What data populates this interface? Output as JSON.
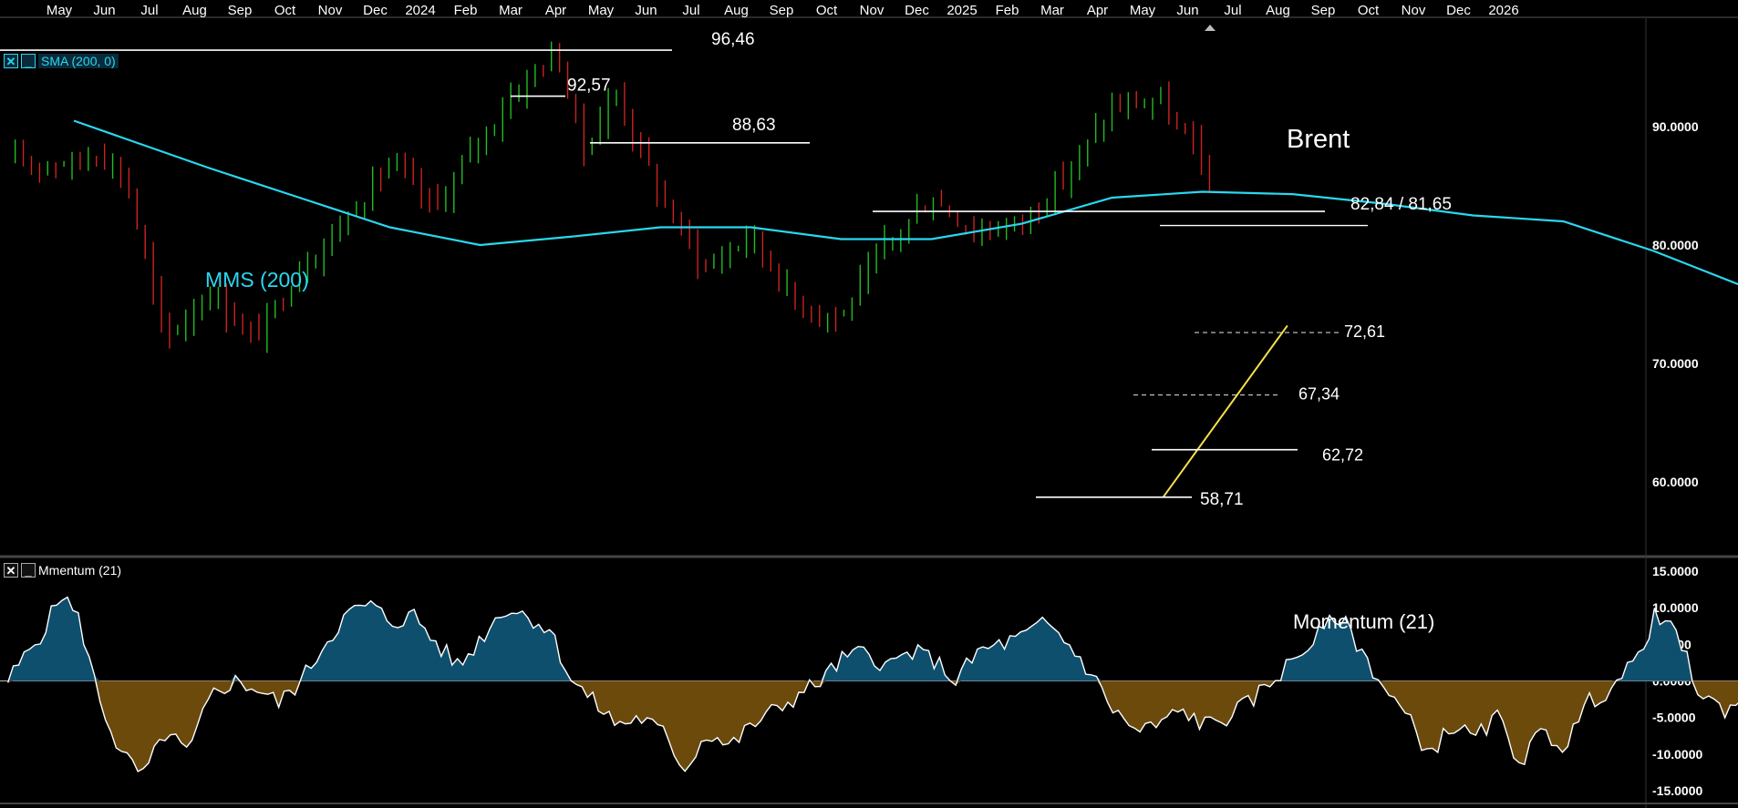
{
  "chart_data": {
    "type": "candlestick",
    "title": "Brent",
    "time_axis": {
      "labels": [
        "May",
        "Jun",
        "Jul",
        "Aug",
        "Sep",
        "Oct",
        "Nov",
        "Dec",
        "2024",
        "Feb",
        "Mar",
        "Apr",
        "May",
        "Jun",
        "Jul",
        "Aug",
        "Sep",
        "Oct",
        "Nov",
        "Dec",
        "2025",
        "Feb",
        "Mar",
        "Apr",
        "May",
        "Jun",
        "Jul",
        "Aug",
        "Sep",
        "Oct",
        "Nov",
        "Dec",
        "2026"
      ],
      "range": [
        "2023-05",
        "2026-01"
      ]
    },
    "price_panel": {
      "y_range": [
        54,
        99
      ],
      "y_ticks": [
        "60.0000",
        "70.0000",
        "80.0000",
        "90.0000"
      ],
      "y_tick_values": [
        60,
        70,
        80,
        90
      ],
      "key_levels": [
        "96,46",
        "92,57",
        "88,63",
        "82,84 / 81,65",
        "72,61",
        "67,34",
        "62,72",
        "58,71"
      ],
      "sma_label": "MMS (200)",
      "sma_points": [
        [
          0,
          90.5
        ],
        [
          3,
          86.5
        ],
        [
          5,
          84
        ],
        [
          7,
          81.5
        ],
        [
          9,
          80
        ],
        [
          11,
          80.7
        ],
        [
          13,
          81.5
        ],
        [
          15,
          81.5
        ],
        [
          17,
          80.5
        ],
        [
          19,
          80.5
        ],
        [
          21,
          81.8
        ],
        [
          23,
          84
        ],
        [
          25,
          84.5
        ],
        [
          27,
          84.3
        ],
        [
          29,
          83.5
        ],
        [
          31,
          82.5
        ],
        [
          33,
          82
        ],
        [
          35,
          79.5
        ],
        [
          36,
          78
        ],
        [
          37,
          76.5
        ],
        [
          38,
          75
        ],
        [
          39,
          74
        ],
        [
          40.8,
          72.4
        ],
        [
          41.7,
          72.6
        ]
      ],
      "candle_path": [
        [
          0,
          87
        ],
        [
          0.6,
          88
        ],
        [
          1.2,
          85
        ],
        [
          2,
          72
        ],
        [
          3,
          76
        ],
        [
          4,
          72
        ],
        [
          5,
          78
        ],
        [
          6,
          82
        ],
        [
          7,
          87
        ],
        [
          8,
          83
        ],
        [
          9,
          89
        ],
        [
          10,
          94
        ],
        [
          10.7,
          96.3
        ],
        [
          11.3,
          88
        ],
        [
          12,
          93
        ],
        [
          13,
          84
        ],
        [
          14,
          78
        ],
        [
          15,
          81
        ],
        [
          16,
          75
        ],
        [
          17,
          74
        ],
        [
          18,
          80
        ],
        [
          19,
          84
        ],
        [
          20,
          81
        ],
        [
          21,
          82
        ],
        [
          22,
          86
        ],
        [
          23,
          91.5
        ],
        [
          24,
          92.3
        ],
        [
          25,
          87
        ],
        [
          26,
          83
        ],
        [
          27,
          81
        ],
        [
          28,
          79
        ],
        [
          29,
          85
        ],
        [
          30,
          88
        ],
        [
          31,
          85
        ],
        [
          32,
          82
        ],
        [
          33,
          76
        ],
        [
          34,
          74
        ],
        [
          35,
          73
        ],
        [
          36,
          71
        ],
        [
          37,
          74
        ],
        [
          38,
          71
        ],
        [
          39,
          73
        ],
        [
          40,
          73
        ],
        [
          41,
          72
        ],
        [
          42,
          71
        ],
        [
          43,
          72
        ],
        [
          44,
          73
        ],
        [
          45,
          75
        ],
        [
          46,
          79
        ],
        [
          47,
          82
        ],
        [
          48,
          79
        ],
        [
          49,
          76
        ],
        [
          50,
          74
        ],
        [
          51,
          70
        ],
        [
          52,
          71
        ],
        [
          53,
          74
        ],
        [
          53.7,
          75.5
        ],
        [
          54.1,
          65
        ],
        [
          55,
          59
        ],
        [
          55.5,
          65
        ],
        [
          56,
          62
        ],
        [
          56.5,
          66
        ],
        [
          57,
          60
        ],
        [
          57.8,
          63
        ],
        [
          58.3,
          60
        ],
        [
          59,
          64
        ],
        [
          60,
          66
        ],
        [
          61,
          64
        ],
        [
          61.7,
          67
        ],
        [
          62.3,
          73
        ],
        [
          62.8,
          79
        ],
        [
          63.2,
          81.4
        ],
        [
          63.6,
          70
        ],
        [
          64,
          68
        ]
      ],
      "trendline": {
        "from": [
          "2025-05-05",
          58.7
        ],
        "to": [
          "2025-07-28",
          73.2
        ]
      }
    },
    "momentum_panel": {
      "label": "Momentum (21)",
      "control_label": "Mmentum (21)",
      "y_range": [
        -16.5,
        16.5
      ],
      "y_ticks": [
        "15.0000",
        "10.0000",
        "5.0000",
        "0.0000",
        "-5.0000",
        "-10.0000",
        "-15.0000"
      ],
      "y_tick_values": [
        15,
        10,
        5,
        0,
        -5,
        -10,
        -15
      ],
      "points": [
        [
          0,
          0
        ],
        [
          0.8,
          7
        ],
        [
          1.2,
          12
        ],
        [
          1.6,
          8
        ],
        [
          2,
          -2
        ],
        [
          2.5,
          -10
        ],
        [
          3,
          -13
        ],
        [
          3.5,
          -7
        ],
        [
          4,
          -10
        ],
        [
          4.5,
          -2
        ],
        [
          5,
          0
        ],
        [
          5.5,
          -1
        ],
        [
          6,
          -3
        ],
        [
          6.5,
          0
        ],
        [
          7,
          5
        ],
        [
          7.5,
          9
        ],
        [
          8,
          10.5
        ],
        [
          8.5,
          8
        ],
        [
          9,
          9
        ],
        [
          9.5,
          5
        ],
        [
          10,
          2
        ],
        [
          10.5,
          6
        ],
        [
          11,
          10
        ],
        [
          11.5,
          9
        ],
        [
          12,
          7
        ],
        [
          12.5,
          0
        ],
        [
          13,
          -3
        ],
        [
          13.5,
          -6
        ],
        [
          14,
          -5
        ],
        [
          14.5,
          -7
        ],
        [
          15,
          -12
        ],
        [
          15.5,
          -7
        ],
        [
          16,
          -9
        ],
        [
          16.5,
          -6
        ],
        [
          17,
          -4
        ],
        [
          17.5,
          -2
        ],
        [
          18,
          0
        ],
        [
          18.5,
          3
        ],
        [
          19,
          4
        ],
        [
          19.5,
          2
        ],
        [
          20,
          4
        ],
        [
          20.5,
          3
        ],
        [
          21,
          0
        ],
        [
          21.5,
          4
        ],
        [
          22,
          5
        ],
        [
          22.5,
          6
        ],
        [
          23,
          8
        ],
        [
          23.5,
          5
        ],
        [
          24,
          1
        ],
        [
          24.5,
          -4
        ],
        [
          25,
          -7
        ],
        [
          25.5,
          -6
        ],
        [
          26,
          -4
        ],
        [
          26.5,
          -6
        ],
        [
          27,
          -5
        ],
        [
          27.5,
          -3
        ],
        [
          28,
          0
        ],
        [
          28.5,
          3
        ],
        [
          29,
          6
        ],
        [
          29.5,
          9
        ],
        [
          30,
          4
        ],
        [
          30.5,
          -1
        ],
        [
          31,
          -5
        ],
        [
          31.5,
          -10
        ],
        [
          32,
          -6
        ],
        [
          32.5,
          -8
        ],
        [
          33,
          -5
        ],
        [
          33.5,
          -11
        ],
        [
          34,
          -7
        ],
        [
          34.5,
          -9
        ],
        [
          35,
          -3
        ],
        [
          35.5,
          -1
        ],
        [
          36,
          2
        ],
        [
          36.5,
          9
        ],
        [
          37,
          6
        ],
        [
          37.5,
          -2
        ],
        [
          38,
          -4
        ],
        [
          38.5,
          -2
        ],
        [
          39,
          -3
        ],
        [
          39.5,
          -1
        ],
        [
          40,
          -3
        ],
        [
          40.5,
          -1
        ],
        [
          41,
          0
        ],
        [
          41.5,
          3
        ],
        [
          42,
          6
        ],
        [
          42.5,
          7
        ],
        [
          43,
          5
        ],
        [
          43.5,
          3
        ],
        [
          44,
          0
        ],
        [
          44.5,
          -3
        ],
        [
          45,
          -6
        ],
        [
          45.5,
          -5
        ],
        [
          46,
          -4
        ],
        [
          46.5,
          -6
        ],
        [
          47,
          -5
        ],
        [
          47.5,
          -3
        ],
        [
          48,
          1
        ],
        [
          48.5,
          3
        ],
        [
          49,
          -3
        ],
        [
          49.5,
          -5
        ],
        [
          50,
          -8
        ],
        [
          50.5,
          -11
        ],
        [
          51,
          -13
        ],
        [
          51.5,
          -7
        ],
        [
          52,
          -1
        ],
        [
          52.5,
          3
        ],
        [
          53,
          5
        ],
        [
          53.5,
          9
        ],
        [
          54,
          13.5
        ],
        [
          54.4,
          10
        ],
        [
          54.7,
          4
        ]
      ]
    }
  },
  "colors": {
    "background": "#000000",
    "bull": "#22bb22",
    "bear": "#cc2222",
    "sma": "#2ad7f0",
    "trendline": "#f5e14a",
    "level": "#ffffff",
    "momentum_pos_fill": "#0f4f6e",
    "momentum_neg_fill": "#6b4a0c"
  },
  "controls": {
    "price": {
      "close_icon": "✕",
      "minimize_icon": "_",
      "label": "SMA (200, 0)"
    },
    "momentum": {
      "close_icon": "✕",
      "minimize_icon": "_"
    }
  }
}
